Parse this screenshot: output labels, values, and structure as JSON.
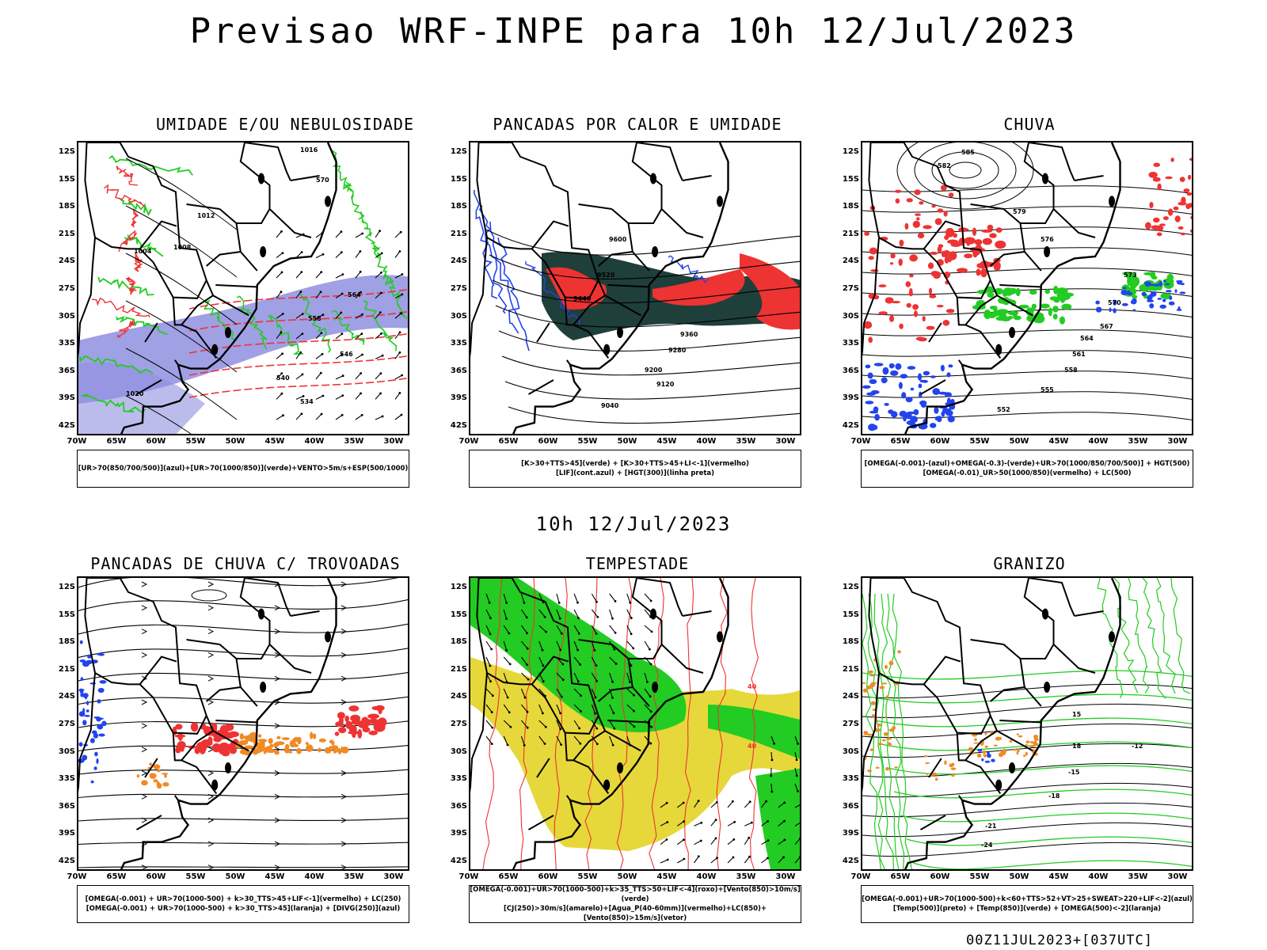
{
  "title": "Previsao WRF-INPE  para 10h 12/Jul/2023",
  "mid_date": "10h 12/Jul/2023",
  "footer": "00Z11JUL2023+[037UTC]",
  "lat_labels": [
    "12S",
    "15S",
    "18S",
    "21S",
    "24S",
    "27S",
    "30S",
    "33S",
    "36S",
    "39S",
    "42S"
  ],
  "lon_labels": [
    "70W",
    "65W",
    "60W",
    "55W",
    "50W",
    "45W",
    "40W",
    "35W",
    "30W"
  ],
  "colors": {
    "blue_shade": "#8f8fe0",
    "green": "#22cc22",
    "red": "#ee3333",
    "dark_teal": "#1f3f3a",
    "yellow": "#e6d83a",
    "orange": "#f08a24",
    "blue": "#2244ee"
  },
  "panels": [
    {
      "title": "UMIDADE E/OU NEBULOSIDADE",
      "legend": [
        "[UR>70(850/700/500)](azul)+[UR>70(1000/850)](verde)+VENTO>5m/s+ESP(500/1000)"
      ],
      "contour_labels": [
        "1016",
        "1012",
        "1008",
        "1004",
        "1020",
        "570",
        "564",
        "558",
        "546",
        "540",
        "534"
      ]
    },
    {
      "title": "PANCADAS POR CALOR E UMIDADE",
      "legend": [
        "[K>30+TTS>45](verde) + [K>30+TTS>45+LI<-1](vermelho)",
        "[LIF](cont.azul) + [HGT(300)](linha preta)"
      ],
      "contour_labels": [
        "9600",
        "9520",
        "9440",
        "9360",
        "9280",
        "9200",
        "9120",
        "9040"
      ]
    },
    {
      "title": "CHUVA",
      "legend": [
        "[OMEGA(-0.001)-(azul)+OMEGA(-0.3)-(verde)+UR>70(1000/850/700/500)] + HGT(500)",
        "[OMEGA(-0.01)_UR>50(1000/850)(vermelho) + LC(500)"
      ],
      "contour_labels": [
        "585",
        "582",
        "579",
        "576",
        "573",
        "570",
        "567",
        "564",
        "561",
        "558",
        "555",
        "552"
      ]
    },
    {
      "title": "PANCADAS DE CHUVA C/ TROVOADAS",
      "legend": [
        "[OMEGA(-0.001) + UR>70(1000-500) + k>30_TTS>45+LIF<-1](vermelho) + LC(250)",
        "[OMEGA(-0.001) + UR>70(1000-500) + k>30_TTS>45](laranja) + [DIVG(250)](azul)"
      ],
      "contour_labels": []
    },
    {
      "title": "TEMPESTADE",
      "legend": [
        "[OMEGA(-0.001)+UR>70(1000-500)+k>35_TTS>50+LIF<-4](roxo)+[Vento(850)>10m/s](verde)",
        "[CJ(250)>30m/s](amarelo)+[Agua_P(40-60mm)](vermelho)+LC(850)+[Vento(850)>15m/s](vetor)"
      ],
      "contour_labels": [
        "40",
        "40"
      ]
    },
    {
      "title": "GRANIZO",
      "legend": [
        "[OMEGA(-0.001)+UR>70(1000-500)+k<60+TTS>52+VT>25+SWEAT>220+LIF<-2](azul)",
        "[Temp(500)](preto) + [Temp(850)](verde) + [OMEGA(500)<-2](laranja)"
      ],
      "contour_labels": [
        "-12",
        "-15",
        "-18",
        "-21",
        "-24",
        "15",
        "18"
      ]
    }
  ]
}
